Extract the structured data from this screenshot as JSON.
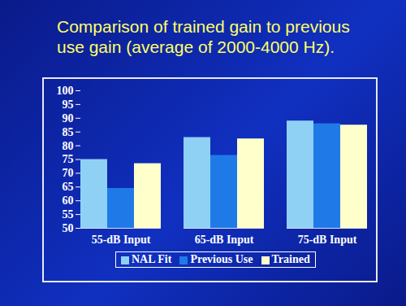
{
  "chart_data": {
    "type": "bar",
    "title": "Comparison of trained gain to previous use gain (average of 2000-4000 Hz).",
    "categories": [
      "55-dB Input",
      "65-dB Input",
      "75-dB Input"
    ],
    "series": [
      {
        "name": "NAL Fit",
        "color": "#8fd0f5",
        "values": [
          75,
          83,
          89
        ]
      },
      {
        "name": "Previous Use",
        "color": "#1f7ae8",
        "values": [
          64.5,
          76.5,
          88
        ]
      },
      {
        "name": "Trained",
        "color": "#ffffcc",
        "values": [
          73.5,
          82.5,
          87.5
        ]
      }
    ],
    "ylim": [
      50,
      100
    ],
    "yticks": [
      50,
      55,
      60,
      65,
      70,
      75,
      80,
      85,
      90,
      95,
      100
    ],
    "legend": "bottom",
    "grid": false
  }
}
